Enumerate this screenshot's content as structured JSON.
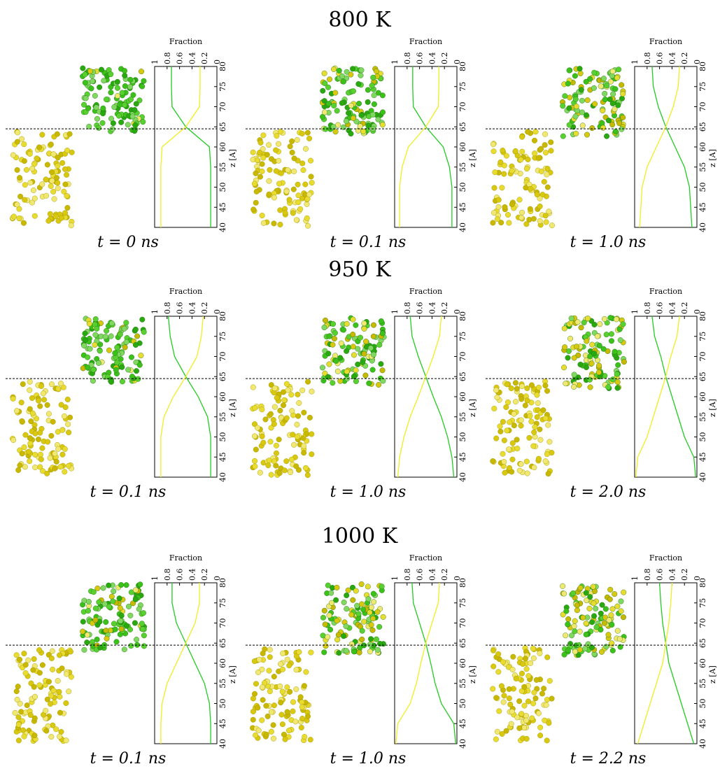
{
  "headings": [
    "800 K",
    "950 K",
    "1000 K"
  ],
  "chart_data": [
    {
      "type": "line",
      "caption": "t = 0 ns",
      "xlabel": "Fraction",
      "ylabel": "z [A]",
      "xlim": [
        1,
        0
      ],
      "xticks": [
        1,
        0.8,
        0.6,
        0.4,
        0.2,
        0
      ],
      "ylim": [
        40,
        80
      ],
      "yticks": [
        40,
        45,
        50,
        55,
        60,
        65,
        70,
        75,
        80
      ],
      "interface_z": 64.5,
      "z": [
        40,
        45,
        50,
        55,
        60,
        65,
        70,
        75,
        80
      ],
      "series": [
        {
          "color": "#22cc22",
          "values": [
            0.1,
            0.1,
            0.1,
            0.1,
            0.12,
            0.5,
            0.72,
            0.73,
            0.73
          ]
        },
        {
          "color": "#eeee22",
          "values": [
            0.9,
            0.9,
            0.9,
            0.9,
            0.88,
            0.5,
            0.28,
            0.27,
            0.27
          ]
        }
      ]
    },
    {
      "type": "line",
      "caption": "t = 0.1 ns",
      "xlabel": "Fraction",
      "ylabel": "z [A]",
      "xlim": [
        1,
        0
      ],
      "xticks": [
        1,
        0.8,
        0.6,
        0.4,
        0.2,
        0
      ],
      "ylim": [
        40,
        80
      ],
      "yticks": [
        40,
        45,
        50,
        55,
        60,
        65,
        70,
        75,
        80
      ],
      "interface_z": 64.5,
      "z": [
        40,
        45,
        50,
        55,
        60,
        65,
        70,
        75,
        80
      ],
      "series": [
        {
          "color": "#22cc22",
          "values": [
            0.08,
            0.08,
            0.08,
            0.12,
            0.22,
            0.5,
            0.7,
            0.71,
            0.71
          ]
        },
        {
          "color": "#eeee22",
          "values": [
            0.92,
            0.92,
            0.92,
            0.88,
            0.78,
            0.5,
            0.3,
            0.29,
            0.29
          ]
        }
      ]
    },
    {
      "type": "line",
      "caption": "t = 1.0 ns",
      "xlabel": "Fraction",
      "ylabel": "z [A]",
      "xlim": [
        1,
        0
      ],
      "xticks": [
        1,
        0.8,
        0.6,
        0.4,
        0.2,
        0
      ],
      "ylim": [
        40,
        80
      ],
      "yticks": [
        40,
        45,
        50,
        55,
        60,
        65,
        70,
        75,
        80
      ],
      "interface_z": 64.5,
      "z": [
        40,
        45,
        50,
        55,
        60,
        65,
        70,
        75,
        80
      ],
      "series": [
        {
          "color": "#22cc22",
          "values": [
            0.08,
            0.1,
            0.12,
            0.2,
            0.35,
            0.5,
            0.62,
            0.7,
            0.72
          ]
        },
        {
          "color": "#eeee22",
          "values": [
            0.92,
            0.9,
            0.88,
            0.8,
            0.65,
            0.5,
            0.38,
            0.3,
            0.28
          ]
        }
      ]
    },
    {
      "type": "line",
      "caption": "t = 0.1 ns",
      "xlabel": "Fraction",
      "ylabel": "z [A]",
      "xlim": [
        1,
        0
      ],
      "xticks": [
        1,
        0.8,
        0.6,
        0.4,
        0.2,
        0
      ],
      "ylim": [
        40,
        80
      ],
      "yticks": [
        40,
        45,
        50,
        55,
        60,
        65,
        70,
        75,
        80
      ],
      "interface_z": 64.5,
      "z": [
        40,
        45,
        50,
        55,
        60,
        65,
        70,
        75,
        80
      ],
      "series": [
        {
          "color": "#22cc22",
          "values": [
            0.1,
            0.1,
            0.1,
            0.15,
            0.3,
            0.5,
            0.68,
            0.75,
            0.78
          ]
        },
        {
          "color": "#eeee22",
          "values": [
            0.9,
            0.9,
            0.9,
            0.85,
            0.7,
            0.5,
            0.32,
            0.25,
            0.22
          ]
        }
      ]
    },
    {
      "type": "line",
      "caption": "t = 1.0 ns",
      "xlabel": "Fraction",
      "ylabel": "z [A]",
      "xlim": [
        1,
        0
      ],
      "xticks": [
        1,
        0.8,
        0.6,
        0.4,
        0.2,
        0
      ],
      "ylim": [
        40,
        80
      ],
      "yticks": [
        40,
        45,
        50,
        55,
        60,
        65,
        70,
        75,
        80
      ],
      "interface_z": 64.5,
      "z": [
        40,
        45,
        50,
        55,
        60,
        65,
        70,
        75,
        80
      ],
      "series": [
        {
          "color": "#22cc22",
          "values": [
            0.05,
            0.08,
            0.15,
            0.25,
            0.38,
            0.5,
            0.62,
            0.72,
            0.75
          ]
        },
        {
          "color": "#eeee22",
          "values": [
            0.95,
            0.92,
            0.85,
            0.75,
            0.62,
            0.5,
            0.38,
            0.28,
            0.25
          ]
        }
      ]
    },
    {
      "type": "line",
      "caption": "t = 2.0 ns",
      "xlabel": "Fraction",
      "ylabel": "z [A]",
      "xlim": [
        1,
        0
      ],
      "xticks": [
        1,
        0.8,
        0.6,
        0.4,
        0.2,
        0
      ],
      "ylim": [
        40,
        80
      ],
      "yticks": [
        40,
        45,
        50,
        55,
        60,
        65,
        70,
        75,
        80
      ],
      "interface_z": 64.5,
      "z": [
        40,
        45,
        50,
        55,
        60,
        65,
        70,
        75,
        80
      ],
      "series": [
        {
          "color": "#22cc22",
          "values": [
            0.02,
            0.05,
            0.2,
            0.3,
            0.4,
            0.5,
            0.58,
            0.68,
            0.72
          ]
        },
        {
          "color": "#eeee22",
          "values": [
            0.98,
            0.95,
            0.8,
            0.7,
            0.6,
            0.5,
            0.42,
            0.32,
            0.28
          ]
        }
      ]
    },
    {
      "type": "line",
      "caption": "t = 0.1 ns",
      "xlabel": "Fraction",
      "ylabel": "z [A]",
      "xlim": [
        1,
        0
      ],
      "xticks": [
        1,
        0.8,
        0.6,
        0.4,
        0.2,
        0
      ],
      "ylim": [
        40,
        80
      ],
      "yticks": [
        40,
        45,
        50,
        55,
        60,
        65,
        70,
        75,
        80
      ],
      "interface_z": 64.5,
      "z": [
        40,
        45,
        50,
        55,
        60,
        65,
        70,
        75,
        80
      ],
      "series": [
        {
          "color": "#22cc22",
          "values": [
            0.1,
            0.1,
            0.12,
            0.2,
            0.35,
            0.5,
            0.65,
            0.72,
            0.72
          ]
        },
        {
          "color": "#eeee22",
          "values": [
            0.9,
            0.9,
            0.88,
            0.8,
            0.65,
            0.5,
            0.35,
            0.28,
            0.28
          ]
        }
      ]
    },
    {
      "type": "line",
      "caption": "t = 1.0 ns",
      "xlabel": "Fraction",
      "ylabel": "z [A]",
      "xlim": [
        1,
        0
      ],
      "xticks": [
        1,
        0.8,
        0.6,
        0.4,
        0.2,
        0
      ],
      "ylim": [
        40,
        80
      ],
      "yticks": [
        40,
        45,
        50,
        55,
        60,
        65,
        70,
        75,
        80
      ],
      "interface_z": 64.5,
      "z": [
        40,
        45,
        50,
        55,
        60,
        65,
        70,
        75,
        80
      ],
      "series": [
        {
          "color": "#22cc22",
          "values": [
            0.02,
            0.05,
            0.25,
            0.35,
            0.42,
            0.5,
            0.6,
            0.7,
            0.72
          ]
        },
        {
          "color": "#eeee22",
          "values": [
            0.98,
            0.95,
            0.75,
            0.65,
            0.58,
            0.5,
            0.4,
            0.3,
            0.28
          ]
        }
      ]
    },
    {
      "type": "line",
      "caption": "t = 2.2 ns",
      "xlabel": "Fraction",
      "ylabel": "z [A]",
      "xlim": [
        1,
        0
      ],
      "xticks": [
        1,
        0.8,
        0.6,
        0.4,
        0.2,
        0
      ],
      "ylim": [
        40,
        80
      ],
      "yticks": [
        40,
        45,
        50,
        55,
        60,
        65,
        70,
        75,
        80
      ],
      "interface_z": 64.5,
      "z": [
        40,
        45,
        50,
        55,
        60,
        65,
        70,
        75,
        80
      ],
      "series": [
        {
          "color": "#22cc22",
          "values": [
            0.05,
            0.15,
            0.25,
            0.35,
            0.45,
            0.5,
            0.55,
            0.58,
            0.6
          ]
        },
        {
          "color": "#eeee22",
          "values": [
            0.95,
            0.85,
            0.75,
            0.65,
            0.55,
            0.5,
            0.45,
            0.42,
            0.4
          ]
        }
      ]
    }
  ]
}
